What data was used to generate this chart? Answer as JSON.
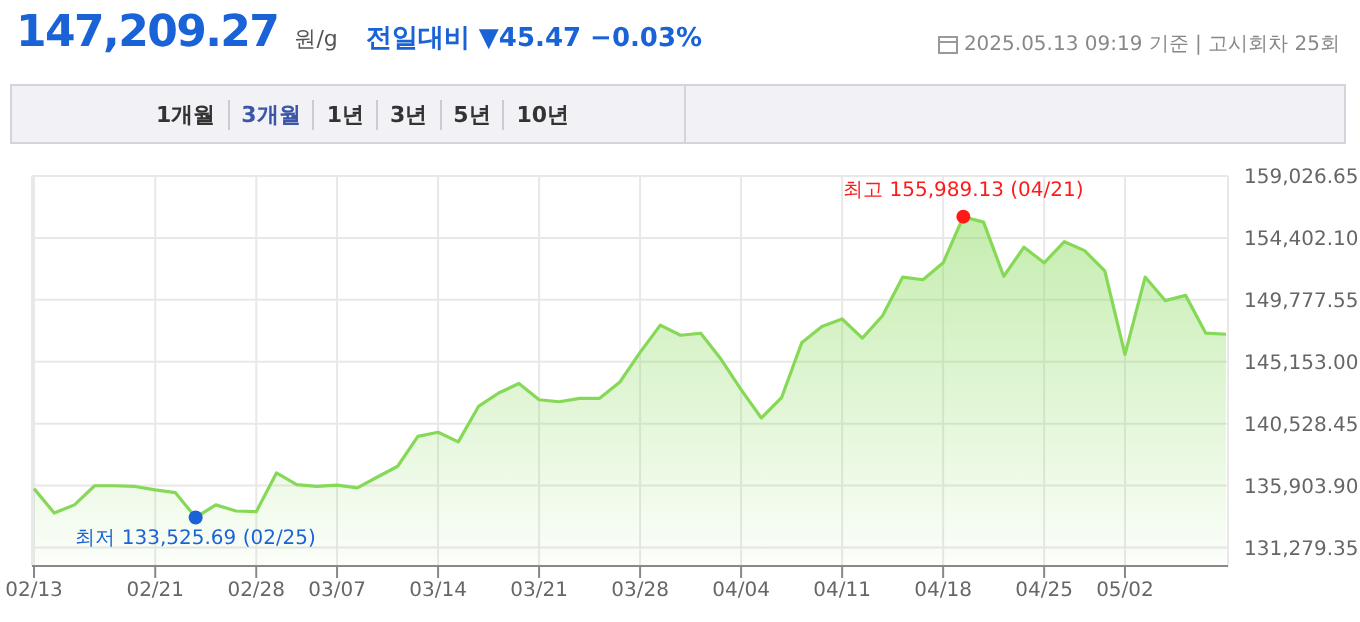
{
  "chart_data": {
    "type": "area",
    "title": "147,209.27",
    "subtitle": "원/g",
    "annotations": [
      "전일대비 ▼45.47 −0.03%",
      "2025.05.13 09:19 기준 | 고시회차 25회",
      "1개월",
      "3개월",
      "1년",
      "3년",
      "5년",
      "10년"
    ],
    "categories": [
      "02/13",
      null,
      null,
      null,
      null,
      null,
      "02/21",
      null,
      null,
      null,
      null,
      "02/28",
      null,
      null,
      null,
      "03/07",
      null,
      null,
      null,
      null,
      "03/14",
      null,
      null,
      null,
      null,
      "03/21",
      null,
      null,
      null,
      null,
      "03/28",
      null,
      null,
      null,
      null,
      "04/04",
      null,
      null,
      null,
      null,
      "04/11",
      null,
      null,
      null,
      null,
      "04/18",
      null,
      null,
      null,
      null,
      "04/25",
      null,
      null,
      null,
      "05/02",
      null,
      null,
      null,
      null,
      null
    ],
    "series": [
      {
        "color": "#86d957",
        "values": [
          135680,
          133857,
          134465,
          135892,
          135892,
          135840,
          135588,
          135376,
          133525.69,
          134465,
          134009,
          133958,
          136850,
          135984,
          135840,
          135942,
          135740,
          136545,
          137350,
          139583,
          139887,
          139173,
          141817,
          142819,
          143533,
          142318,
          142166,
          142424,
          142424,
          143640,
          145857,
          147892,
          147133,
          147285,
          145356,
          143077,
          140951,
          142470,
          146571,
          147786,
          148348,
          146921,
          148592,
          151478,
          151280,
          152541,
          155989.13,
          155579,
          151538,
          153710,
          152541,
          154120,
          153452,
          151933,
          145705,
          151478,
          149716,
          150111,
          147285,
          147209.27
        ]
      },
      {
        "type": "scatter",
        "color": "#ff1a1a",
        "values": [
          null,
          null,
          null,
          null,
          null,
          null,
          null,
          null,
          null,
          null,
          null,
          null,
          null,
          null,
          null,
          null,
          null,
          null,
          null,
          null,
          null,
          null,
          null,
          null,
          null,
          null,
          null,
          null,
          null,
          null,
          null,
          null,
          null,
          null,
          null,
          null,
          null,
          null,
          null,
          null,
          null,
          null,
          null,
          null,
          null,
          null,
          155989.13,
          null,
          null,
          null,
          null,
          null,
          null,
          null,
          null,
          null,
          null,
          null,
          null,
          null
        ],
        "value_labels": [
          null,
          null,
          null,
          null,
          null,
          null,
          null,
          null,
          null,
          null,
          null,
          null,
          null,
          null,
          null,
          null,
          null,
          null,
          null,
          null,
          null,
          null,
          null,
          null,
          null,
          null,
          null,
          null,
          null,
          null,
          null,
          null,
          null,
          null,
          null,
          null,
          null,
          null,
          null,
          null,
          null,
          null,
          null,
          null,
          null,
          null,
          "최고 155,989.13 (04/21)",
          null,
          null,
          null,
          null,
          null,
          null,
          null,
          null,
          null,
          null,
          null,
          null,
          null
        ]
      },
      {
        "type": "scatter",
        "color": "#1a63d6",
        "values": [
          null,
          null,
          null,
          null,
          null,
          null,
          null,
          null,
          133525.69,
          null,
          null,
          null,
          null,
          null,
          null,
          null,
          null,
          null,
          null,
          null,
          null,
          null,
          null,
          null,
          null,
          null,
          null,
          null,
          null,
          null,
          null,
          null,
          null,
          null,
          null,
          null,
          null,
          null,
          null,
          null,
          null,
          null,
          null,
          null,
          null,
          null,
          null,
          null,
          null,
          null,
          null,
          null,
          null,
          null,
          null,
          null,
          null,
          null,
          null,
          null
        ],
        "value_labels": [
          null,
          null,
          null,
          null,
          null,
          null,
          null,
          null,
          "최저 133,525.69 (02/25)",
          null,
          null,
          null,
          null,
          null,
          null,
          null,
          null,
          null,
          null,
          null,
          null,
          null,
          null,
          null,
          null,
          null,
          null,
          null,
          null,
          null,
          null,
          null,
          null,
          null,
          null,
          null,
          null,
          null,
          null,
          null,
          null,
          null,
          null,
          null,
          null,
          null,
          null,
          null,
          null,
          null,
          null,
          null,
          null,
          null,
          null,
          null,
          null,
          null,
          null,
          null
        ]
      }
    ],
    "ylim": [
      129900,
      159026.65
    ],
    "yticks": [
      {
        "value": 131279.35,
        "label": "131,279.35"
      },
      {
        "value": 135903.9,
        "label": "135,903.90"
      },
      {
        "value": 140528.45,
        "label": "140,528.45"
      },
      {
        "value": 145153,
        "label": "145,153.00"
      },
      {
        "value": 149777.55,
        "label": "149,777.55"
      },
      {
        "value": 154402.1,
        "label": "154,402.10"
      },
      {
        "value": 159026.65,
        "label": "159,026.65"
      }
    ],
    "grid": true
  }
}
